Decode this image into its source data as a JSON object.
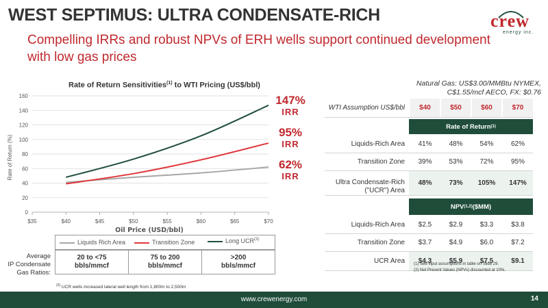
{
  "slide": {
    "title": "WEST SEPTIMUS: ULTRA CONDENSATE-RICH",
    "subtitle_line1": "Compelling IRRs and robust NPVs of ERH wells support continued development",
    "subtitle_line2": "with low gas prices",
    "logo_text": "crew",
    "logo_subtext": "energy inc.",
    "footer_url": "www.crewenergy.com",
    "page_number": "14"
  },
  "chart_data": {
    "type": "line",
    "title": "Rate of Return Sensitivities",
    "title_sup": "(1)",
    "title_suffix": " to WTI Pricing (US$/bbl)",
    "xlabel": "Oil Price (USD/bbl)",
    "ylabel": "Rate of Return (%)",
    "x_ticks": [
      "$35",
      "$40",
      "$45",
      "$50",
      "$55",
      "$60",
      "$65",
      "$70"
    ],
    "y_ticks": [
      "0",
      "20",
      "40",
      "60",
      "80",
      "100",
      "120",
      "140",
      "160"
    ],
    "xlim": [
      35,
      70
    ],
    "ylim": [
      0,
      160
    ],
    "grid": "horizontal",
    "series": [
      {
        "name": "Liquids Rich Area",
        "color": "#a6a6a6",
        "x": [
          40,
          50,
          60,
          70
        ],
        "values": [
          41,
          48,
          54,
          62
        ]
      },
      {
        "name": "Transition Zone",
        "color": "#e0393e",
        "x": [
          40,
          50,
          60,
          70
        ],
        "values": [
          39,
          53,
          72,
          95
        ]
      },
      {
        "name": "Long UCR",
        "name_sup": "(3)",
        "color": "#1f4d3a",
        "x": [
          40,
          50,
          60,
          70
        ],
        "values": [
          48,
          73,
          105,
          147
        ]
      }
    ],
    "end_labels": [
      {
        "pct": "147%",
        "suffix": "IRR"
      },
      {
        "pct": "95%",
        "suffix": "IRR"
      },
      {
        "pct": "62%",
        "suffix": "IRR"
      }
    ]
  },
  "gas_ratios": {
    "label_line1": "Average",
    "label_line2": "IP Condensate",
    "label_line3": "Gas Ratios:",
    "cells": [
      {
        "line1": "20 to <75",
        "line2": "bbls/mmcf"
      },
      {
        "line1": "75 to 200",
        "line2": "bbls/mmcf"
      },
      {
        "line1": ">200",
        "line2": "bbls/mmcf"
      }
    ],
    "footnote_sup": "(3)",
    "footnote": " UCR wells increased lateral well length from 1,800m to 2,500m"
  },
  "table": {
    "note_line1": "Natural Gas: US$3.00/MMBtu NYMEX,",
    "note_line2": "C$1.55/mcf AECO, FX: $0.76",
    "header_label": "WTI Assumption US$/bbl",
    "header_values": [
      "$40",
      "$50",
      "$60",
      "$70"
    ],
    "ror_band": "Rate of Return",
    "ror_band_sup": "(1)",
    "ror_rows": [
      {
        "label": "Liquids-Rich Area",
        "values": [
          "41%",
          "48%",
          "54%",
          "62%"
        ]
      },
      {
        "label": "Transition Zone",
        "values": [
          "39%",
          "53%",
          "72%",
          "95%"
        ]
      },
      {
        "label_line1": "Ultra Condensate-Rich",
        "label_line2": "(\"UCR\") Area",
        "values": [
          "48%",
          "73%",
          "105%",
          "147%"
        ]
      }
    ],
    "npv_band": "NPV ",
    "npv_band_sup": "(1,2)",
    "npv_band_suffix": " ($MM)",
    "npv_rows": [
      {
        "label": "Liquids-Rich Area",
        "values": [
          "$2.5",
          "$2.9",
          "$3.3",
          "$3.8"
        ]
      },
      {
        "label": "Transition Zone",
        "values": [
          "$3.7",
          "$4.9",
          "$6.0",
          "$7.2"
        ]
      },
      {
        "label": "UCR Area",
        "values": [
          "$4.3",
          "$5.9",
          "$7.5",
          "$9.1"
        ]
      }
    ],
    "notes": [
      "(1)     See input assumptions in table on Slide 29.",
      "(2)     Net Present Values (NPVs) discounted at 10%."
    ]
  }
}
